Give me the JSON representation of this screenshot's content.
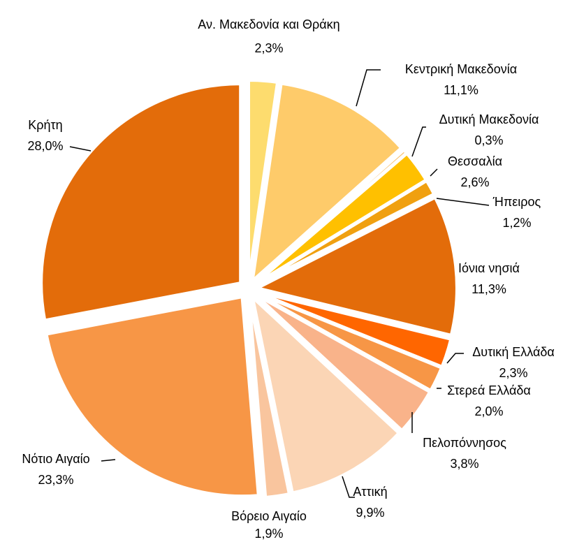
{
  "chart_data": {
    "type": "pie",
    "categories": [
      "Αν. Μακεδονία και Θράκη",
      "Κεντρική Μακεδονία",
      "Δυτική Μακεδονία",
      "Θεσσαλία",
      "Ήπειρος",
      "Ιόνια νησιά",
      "Δυτική Ελλάδα",
      "Στερεά Ελλάδα",
      "Πελοπόννησος",
      "Αττική",
      "Βόρειο Αιγαίο",
      "Νότιο Αιγαίο",
      "Κρήτη"
    ],
    "values": [
      2.3,
      11.1,
      0.3,
      2.6,
      1.2,
      11.3,
      2.3,
      2.0,
      3.8,
      9.9,
      1.9,
      23.3,
      28.0
    ],
    "value_labels": [
      "2,3%",
      "11,1%",
      "0,3%",
      "2,6%",
      "1,2%",
      "11,3%",
      "2,3%",
      "2,0%",
      "3,8%",
      "9,9%",
      "1,9%",
      "23,3%",
      "28,0%"
    ],
    "colors": [
      "#fddc6e",
      "#fecb6a",
      "#f9c270",
      "#ffc000",
      "#f0a010",
      "#e36c0a",
      "#ff6600",
      "#f79646",
      "#f9b38a",
      "#fbd5b5",
      "#f9c59e",
      "#f79646",
      "#e36c0a"
    ]
  }
}
